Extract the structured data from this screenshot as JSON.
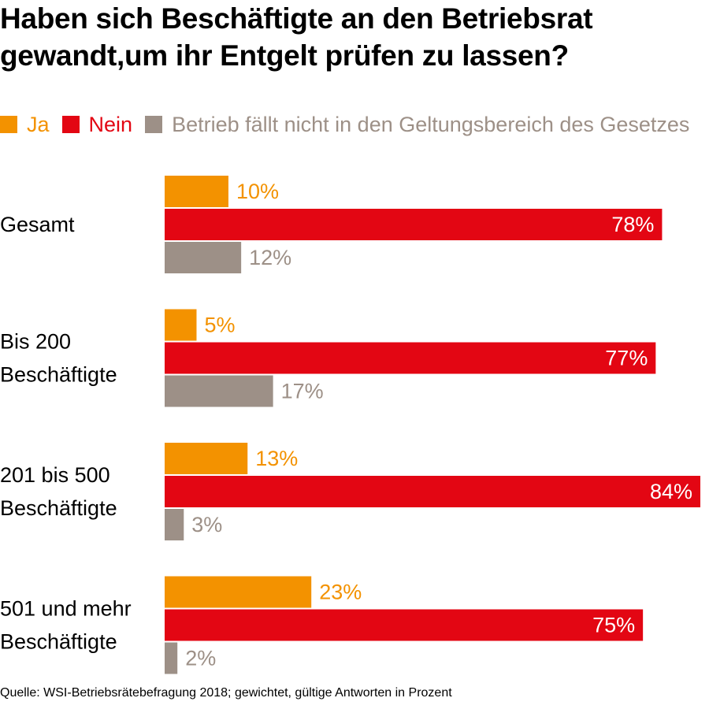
{
  "title_lines": [
    "Haben sich Beschäftigte an den Betriebsrat",
    "gewandt,um ihr Entgelt prüfen zu lassen?"
  ],
  "source": "Quelle: WSI-Betriebsrätebefragung 2018; gewichtet, gültige Antworten in Prozent",
  "colors": {
    "ja": "#f39200",
    "nein": "#e30613",
    "nicht": "#9d9087",
    "label_on_bar": "#ffffff",
    "text": "#000000"
  },
  "chart_data": {
    "type": "bar",
    "orientation": "horizontal",
    "unit": "%",
    "categories": [
      [
        "Gesamt"
      ],
      [
        "Bis 200",
        "Beschäftigte"
      ],
      [
        "201 bis 500",
        "Beschäftigte"
      ],
      [
        "501 und mehr",
        "Beschäftigte"
      ]
    ],
    "series": [
      {
        "key": "ja",
        "name": "Ja",
        "values": [
          10,
          5,
          13,
          23
        ],
        "labels": [
          "10%",
          "5%",
          "13%",
          "23%"
        ]
      },
      {
        "key": "nein",
        "name": "Nein",
        "values": [
          78,
          77,
          84,
          75
        ],
        "labels": [
          "78%",
          "77%",
          "84%",
          "75%"
        ]
      },
      {
        "key": "nicht",
        "name": "Betrieb fällt nicht in den Geltungsbereich des Gesetzes",
        "values": [
          12,
          17,
          3,
          2
        ],
        "labels": [
          "12%",
          "17%",
          "3%",
          "2%"
        ]
      }
    ],
    "xlim": [
      0,
      84
    ],
    "grid": false,
    "legend": "top",
    "value_labels": "outside, inside-end for Nein"
  }
}
